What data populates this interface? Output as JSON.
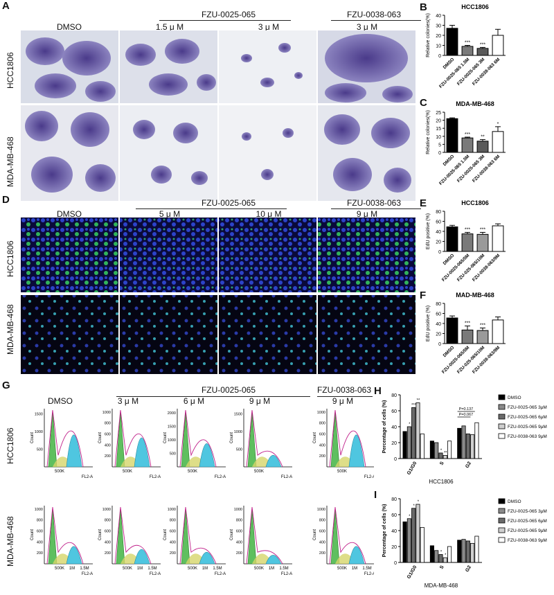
{
  "panels": {
    "A": {
      "label": "A",
      "group1": "FZU-0025-065",
      "group2": "FZU-0038-063",
      "columns": [
        "DMSO",
        "1.5 μ M",
        "3 μ M",
        "3 μ M"
      ],
      "rows": [
        "HCC1806",
        "MDA-MB-468"
      ]
    },
    "D": {
      "label": "D",
      "group1": "FZU-0025-065",
      "group2": "FZU-0038-063",
      "columns": [
        "DMSO",
        "5 μ M",
        "10 μ M",
        "9 μ M"
      ],
      "rows": [
        "HCC1806",
        "MDA-MB-468"
      ]
    },
    "G": {
      "label": "G",
      "group1": "FZU-0025-065",
      "group2": "FZU-0038-063",
      "columns": [
        "DMSO",
        "3 μ M",
        "6 μ M",
        "9 μ M",
        "9 μ M"
      ],
      "rows": [
        "HCC1806",
        "MDA-MB-468"
      ],
      "ylabel": "Count",
      "xlabel": "FL2-A",
      "row1_xticks": [
        "500K"
      ],
      "row2_xticks": [
        "500K",
        "1M",
        "1.5M"
      ]
    },
    "B": {
      "label": "B"
    },
    "C": {
      "label": "C"
    },
    "E": {
      "label": "E"
    },
    "F": {
      "label": "F"
    },
    "H": {
      "label": "H"
    },
    "I": {
      "label": "I"
    }
  },
  "chart_data": [
    {
      "id": "B",
      "type": "bar",
      "title": "HCC1806",
      "ylabel": "Relative colonies(%)",
      "categories": [
        "DMSO",
        "FZU-0025-065 1.5M",
        "FZU-0025-065 3M",
        "FZU-0038-063 6M"
      ],
      "values": [
        27,
        9,
        7,
        20
      ],
      "errors": [
        3,
        1,
        1,
        6
      ],
      "significance": [
        "",
        "***",
        "***",
        ""
      ],
      "fills": [
        "#000000",
        "#7a7a7a",
        "#5a5a5a",
        "#ffffff"
      ],
      "ylim": [
        0,
        40
      ],
      "yticks": [
        0,
        10,
        20,
        30,
        40
      ]
    },
    {
      "id": "C",
      "type": "bar",
      "title": "MDA-MB-468",
      "ylabel": "Relative colonies(%)",
      "categories": [
        "DMSO",
        "FZU-0025-065 1.5M",
        "FZU-0025-065 3M",
        "FZU-0038-063 6M"
      ],
      "values": [
        21,
        9,
        7,
        13
      ],
      "errors": [
        0.5,
        0.5,
        1,
        3
      ],
      "significance": [
        "",
        "***",
        "**",
        "*"
      ],
      "fills": [
        "#000000",
        "#7a7a7a",
        "#5a5a5a",
        "#ffffff"
      ],
      "ylim": [
        0,
        25
      ],
      "yticks": [
        0,
        5,
        10,
        15,
        20,
        25
      ]
    },
    {
      "id": "E",
      "type": "bar",
      "title": "HCC1806",
      "ylabel": "EdU positive (%)",
      "categories": [
        "DMSO",
        "FZU-0025-065/5M",
        "FZU-025-065/10M",
        "FZU-0038-063/9M"
      ],
      "values": [
        49,
        35,
        34,
        51
      ],
      "errors": [
        3,
        3,
        4,
        4
      ],
      "significance": [
        "",
        "***",
        "***",
        ""
      ],
      "fills": [
        "#000000",
        "#7a7a7a",
        "#9a9a9a",
        "#ffffff"
      ],
      "ylim": [
        0,
        80
      ],
      "yticks": [
        0,
        20,
        40,
        60,
        80
      ]
    },
    {
      "id": "F",
      "type": "bar",
      "title": "MAD-MB-468",
      "ylabel": "EdU positive (%)",
      "categories": [
        "DMSO",
        "FZU-0025-065/5M",
        "FZU-025-065/10M",
        "FZU-0038-063/9M"
      ],
      "values": [
        51,
        27,
        26,
        47
      ],
      "errors": [
        4,
        8,
        5,
        6
      ],
      "significance": [
        "",
        "***",
        "***",
        ""
      ],
      "fills": [
        "#000000",
        "#7a7a7a",
        "#9a9a9a",
        "#ffffff"
      ],
      "ylim": [
        0,
        80
      ],
      "yticks": [
        0,
        20,
        40,
        60,
        80
      ]
    },
    {
      "id": "H",
      "type": "bar",
      "xlabel": "HCC1806",
      "ylabel": "Percentage of cells (%)",
      "categories": [
        "G1/G0",
        "S",
        "G2"
      ],
      "series": [
        {
          "name": "DMSO",
          "values": [
            34,
            22,
            38
          ],
          "fill": "#000000"
        },
        {
          "name": "FZU-0025-065 3μM",
          "values": [
            40,
            20,
            41
          ],
          "fill": "#8a8a8a"
        },
        {
          "name": "FZU-0025-065 6μM",
          "values": [
            64,
            7,
            31
          ],
          "fill": "#6a6a6a"
        },
        {
          "name": "FZU-0025-065 9μM",
          "values": [
            70,
            4,
            30
          ],
          "fill": "#cfcfcf"
        },
        {
          "name": "FZU-0038-063 9μM",
          "values": [
            31,
            22,
            45
          ],
          "fill": "#ffffff"
        }
      ],
      "significance": [
        [
          "",
          "*",
          "***",
          "**",
          ""
        ],
        [
          "",
          "",
          "*",
          "**",
          ""
        ],
        [
          "",
          "",
          "",
          "",
          ""
        ]
      ],
      "annotations": [
        "P=0.137",
        "P=0.067"
      ],
      "ylim": [
        0,
        80
      ],
      "yticks": [
        0,
        20,
        40,
        60,
        80
      ]
    },
    {
      "id": "I",
      "type": "bar",
      "xlabel": "MDA-MB-468",
      "ylabel": "Percentage of cells (%)",
      "categories": [
        "G1/G0",
        "S",
        "G2"
      ],
      "series": [
        {
          "name": "DMSO",
          "values": [
            51,
            21,
            28
          ],
          "fill": "#000000"
        },
        {
          "name": "FZU-0025-065 3μM",
          "values": [
            55,
            15,
            29
          ],
          "fill": "#8a8a8a"
        },
        {
          "name": "FZU-0025-065 6μM",
          "values": [
            68,
            10,
            27
          ],
          "fill": "#6a6a6a"
        },
        {
          "name": "FZU-0025-065 9μM",
          "values": [
            73,
            6,
            24
          ],
          "fill": "#cfcfcf"
        },
        {
          "name": "FZU-0038-063 9μM",
          "values": [
            44,
            20,
            33
          ],
          "fill": "#ffffff"
        }
      ],
      "significance": [
        [
          "",
          "*",
          "*",
          "*",
          ""
        ],
        [
          "",
          "",
          "*",
          "*",
          ""
        ],
        [
          "",
          "",
          "",
          "",
          ""
        ]
      ],
      "ylim": [
        0,
        80
      ],
      "yticks": [
        0,
        20,
        40,
        60,
        80
      ]
    }
  ]
}
